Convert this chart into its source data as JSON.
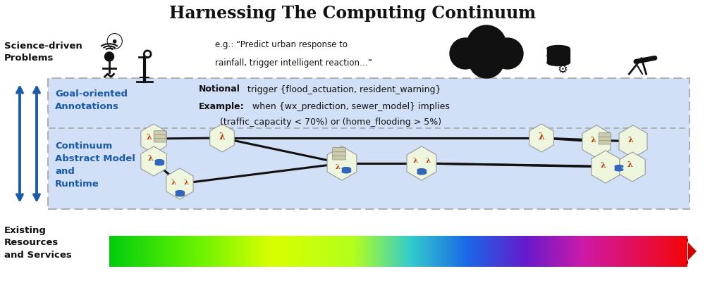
{
  "title": "Harnessing The Computing Continuum",
  "title_fontsize": 17,
  "background_color": "#ffffff",
  "blue_box_color": "#ccddf5",
  "dashed_border_color": "#aaaaaa",
  "arrow_color": "#1a5aab",
  "label_science": "Science-driven\nProblems",
  "label_goal": "Goal-oriented\nAnnotations",
  "label_continuum": "Continuum\nAbstract Model\nand\nRuntime",
  "label_existing": "Existing\nResources\nand Services",
  "example_text_line1": "e.g.: “Predict urban response to",
  "example_text_line2": "rainfall, trigger intelligent reaction…”",
  "notional_bold": "Notional",
  "notional_rest": " trigger {flood_actuation, resident_warning}",
  "example_bold": "Example:",
  "example_rest": " when {wx_prediction, sewer_model} implies",
  "example_line3": "(traffic_capacity < 70%) or (home_flooding > 5%)",
  "hex_color": "#eef6de",
  "hex_edge_color": "#aaaaaa",
  "lambda_color": "#bb3300",
  "db_color": "#2255aa",
  "line_color": "#111111"
}
